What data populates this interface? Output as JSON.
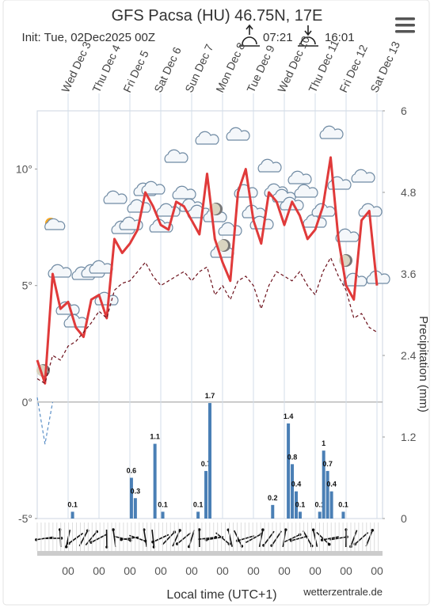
{
  "chart_data": [
    {
      "type": "line",
      "title": "GFS Pacsa (HU) 46.75N, 17E",
      "subtitle": "Init: Tue, 02Dec2025 00Z",
      "sunrise": "07:21",
      "sunset": "16:01",
      "xlabel": "Local time (UTC+1)",
      "source": "wetterzentrale.de",
      "categories": [
        null,
        null,
        null,
        null,
        "Wed Dec 3",
        null,
        null,
        null,
        "Thu Dec 4",
        null,
        null,
        null,
        "Fri Dec 5",
        null,
        null,
        null,
        "Sat Dec 6",
        null,
        null,
        null,
        "Sun Dec 7",
        null,
        null,
        null,
        "Mon Dec 8",
        null,
        null,
        null,
        "Tue Dec 9",
        null,
        null,
        null,
        "Wed Dec 10",
        null,
        null,
        null,
        "Thu Dec 11",
        null,
        null,
        null,
        "Fri Dec 12",
        null,
        null,
        null,
        "Sat Dec 13"
      ],
      "x_tick_labels": [
        "00",
        "00",
        "00",
        "00",
        "00",
        "00",
        "00",
        "00",
        "00",
        "00",
        "00"
      ],
      "ylim": [
        -5,
        12.5
      ],
      "yticks": [
        {
          "value": 10,
          "label": "10°"
        },
        {
          "value": 5,
          "label": "5°"
        },
        {
          "value": 0,
          "label": "0°"
        },
        {
          "value": -5,
          "label": "-5°"
        }
      ],
      "grid": true,
      "series": [
        {
          "color": "#e03a3a",
          "style": "solid",
          "values": [
            1.8,
            0.8,
            5.5,
            4.0,
            4.3,
            3.2,
            2.8,
            4.4,
            4.6,
            3.6,
            7.0,
            6.4,
            6.8,
            7.4,
            9.0,
            8.4,
            7.6,
            7.4,
            8.6,
            8.4,
            7.8,
            7.2,
            9.8,
            7.0,
            6.0,
            5.2,
            9.0,
            10.0,
            7.8,
            6.8,
            9.0,
            8.6,
            7.6,
            8.6,
            8.0,
            7.0,
            7.4,
            8.4,
            10.5,
            7.0,
            5.0,
            4.4,
            7.8,
            8.2,
            5.0
          ]
        },
        {
          "color": "#6b0f1a",
          "style": "dashed",
          "values": [
            1.0,
            0.8,
            2.0,
            1.8,
            2.4,
            2.6,
            3.0,
            3.4,
            3.9,
            3.6,
            4.8,
            5.1,
            5.2,
            5.6,
            6.0,
            5.4,
            5.0,
            5.2,
            5.4,
            5.6,
            5.2,
            5.6,
            5.8,
            4.6,
            5.0,
            4.4,
            5.2,
            5.4,
            5.0,
            4.0,
            5.0,
            5.6,
            5.4,
            5.2,
            5.6,
            5.0,
            4.6,
            5.6,
            6.2,
            5.4,
            4.8,
            3.6,
            3.8,
            3.2,
            3.0
          ]
        },
        {
          "color": "#5b8fc7",
          "style": "dashed",
          "values": [
            0.2,
            -1.8,
            0.0,
            null,
            null,
            null,
            null,
            null,
            null,
            null,
            null,
            null,
            null,
            null,
            null,
            null,
            null,
            null,
            null,
            null,
            null,
            null,
            null,
            null,
            null,
            null,
            null,
            null,
            null,
            null,
            null,
            null,
            null,
            null,
            null,
            null,
            null,
            null,
            null,
            null,
            null,
            null,
            null,
            null,
            null
          ]
        }
      ]
    },
    {
      "type": "bar",
      "color": "#4a7fb5",
      "y_label": "Precipitation (mm)",
      "ylim": [
        0,
        6
      ],
      "yticks": [
        0,
        1.2,
        2.4,
        3.6,
        4.8,
        6
      ],
      "values": [
        0,
        0,
        0,
        0,
        0,
        0,
        0,
        0,
        0,
        0.1,
        0,
        0,
        0,
        0,
        0,
        0,
        0,
        0,
        0,
        0,
        0,
        0,
        0,
        0,
        0.6,
        0.3,
        0,
        0,
        0,
        0,
        1.1,
        0,
        0.1,
        0,
        0,
        0,
        0,
        0,
        0,
        0,
        0,
        0.1,
        0,
        0.7,
        1.7,
        0,
        0,
        0,
        0,
        0,
        0,
        0,
        0,
        0,
        0,
        0,
        0,
        0,
        0,
        0,
        0.2,
        0,
        0,
        0,
        1.4,
        0.8,
        0.4,
        0.1,
        0,
        0,
        0,
        0,
        0.1,
        1.0,
        0.7,
        0.4,
        0,
        0,
        0.1,
        0,
        0,
        0,
        0,
        0,
        0,
        0,
        0,
        0,
        0
      ]
    }
  ]
}
